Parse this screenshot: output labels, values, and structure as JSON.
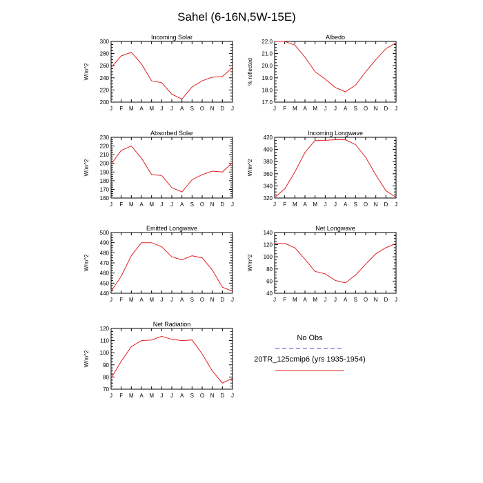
{
  "figure": {
    "title": "Sahel (6-16N,5W-15E)"
  },
  "legend": {
    "entries": [
      {
        "label": "No Obs",
        "color": "#4b4bd8",
        "dash": true
      },
      {
        "label": "20TR_125cmip6 (yrs 1935-1954)",
        "color": "#e02020",
        "dash": false
      }
    ]
  },
  "chart_data": [
    {
      "type": "line",
      "title": "Incoming Solar",
      "ylabel": "W/m^2",
      "x": [
        "J",
        "F",
        "M",
        "A",
        "M",
        "J",
        "J",
        "A",
        "S",
        "O",
        "N",
        "D",
        "J"
      ],
      "ylim": [
        200,
        300
      ],
      "yticks": [
        200,
        220,
        240,
        260,
        280,
        300
      ],
      "series": [
        {
          "name": "20TR_125cmip6 (yrs 1935-1954)",
          "color": "#e02020",
          "values": [
            257,
            276,
            282,
            263,
            235,
            232,
            213,
            205,
            225,
            235,
            241,
            242,
            257
          ]
        }
      ]
    },
    {
      "type": "line",
      "title": "Albedo",
      "ylabel": "% reflected",
      "x": [
        "J",
        "F",
        "M",
        "A",
        "M",
        "J",
        "J",
        "A",
        "S",
        "O",
        "N",
        "D",
        "J"
      ],
      "ylim": [
        17.0,
        22.0
      ],
      "yticks": [
        "17.0",
        "18.0",
        "19.0",
        "20.0",
        "21.0",
        "22.0"
      ],
      "series": [
        {
          "name": "20TR_125cmip6 (yrs 1935-1954)",
          "color": "#e02020",
          "values": [
            22.0,
            22.0,
            21.7,
            20.7,
            19.5,
            18.9,
            18.2,
            17.85,
            18.4,
            19.5,
            20.5,
            21.4,
            21.9
          ]
        }
      ]
    },
    {
      "type": "line",
      "title": "Absorbed Solar",
      "ylabel": "W/m^2",
      "x": [
        "J",
        "F",
        "M",
        "A",
        "M",
        "J",
        "J",
        "A",
        "S",
        "O",
        "N",
        "D",
        "J"
      ],
      "ylim": [
        160,
        230
      ],
      "yticks": [
        160,
        170,
        180,
        190,
        200,
        210,
        220,
        230
      ],
      "series": [
        {
          "name": "20TR_125cmip6 (yrs 1935-1954)",
          "color": "#e02020",
          "values": [
            199,
            215,
            220,
            206,
            187,
            186,
            172,
            167,
            181,
            187,
            191,
            190,
            201
          ]
        }
      ]
    },
    {
      "type": "line",
      "title": "Incoming Longwave",
      "ylabel": "W/m^2",
      "x": [
        "J",
        "F",
        "M",
        "A",
        "M",
        "J",
        "J",
        "A",
        "S",
        "O",
        "N",
        "D",
        "J"
      ],
      "ylim": [
        320,
        420
      ],
      "yticks": [
        320,
        340,
        360,
        380,
        400,
        420
      ],
      "series": [
        {
          "name": "20TR_125cmip6 (yrs 1935-1954)",
          "color": "#e02020",
          "values": [
            321,
            335,
            363,
            395,
            415,
            415,
            416,
            416,
            408,
            387,
            358,
            332,
            321
          ]
        }
      ]
    },
    {
      "type": "line",
      "title": "Emitted Longwave",
      "ylabel": "W/m^2",
      "x": [
        "J",
        "F",
        "M",
        "A",
        "M",
        "J",
        "J",
        "A",
        "S",
        "O",
        "N",
        "D",
        "J"
      ],
      "ylim": [
        440,
        500
      ],
      "yticks": [
        440,
        450,
        460,
        470,
        480,
        490,
        500
      ],
      "series": [
        {
          "name": "20TR_125cmip6 (yrs 1935-1954)",
          "color": "#e02020",
          "values": [
            442,
            457,
            477,
            490,
            490,
            486,
            476,
            473,
            477,
            475,
            463,
            446,
            442
          ]
        }
      ]
    },
    {
      "type": "line",
      "title": "Net Longwave",
      "ylabel": "W/m^2",
      "x": [
        "J",
        "F",
        "M",
        "A",
        "M",
        "J",
        "J",
        "A",
        "S",
        "O",
        "N",
        "D",
        "J"
      ],
      "ylim": [
        40,
        140
      ],
      "yticks": [
        40,
        60,
        80,
        100,
        120,
        140
      ],
      "series": [
        {
          "name": "20TR_125cmip6 (yrs 1935-1954)",
          "color": "#e02020",
          "values": [
            122,
            122,
            115,
            96,
            76,
            72,
            61,
            57,
            70,
            88,
            105,
            115,
            122
          ]
        }
      ]
    },
    {
      "type": "line",
      "title": "Net Radiation",
      "ylabel": "W/m^2",
      "x": [
        "J",
        "F",
        "M",
        "A",
        "M",
        "J",
        "J",
        "A",
        "S",
        "O",
        "N",
        "D",
        "J"
      ],
      "ylim": [
        70,
        120
      ],
      "yticks": [
        70,
        80,
        90,
        100,
        110,
        120
      ],
      "series": [
        {
          "name": "20TR_125cmip6 (yrs 1935-1954)",
          "color": "#e02020",
          "values": [
            79,
            93,
            105,
            110,
            110.5,
            113.5,
            111,
            110,
            110.5,
            99,
            85,
            75,
            79
          ]
        }
      ]
    }
  ]
}
